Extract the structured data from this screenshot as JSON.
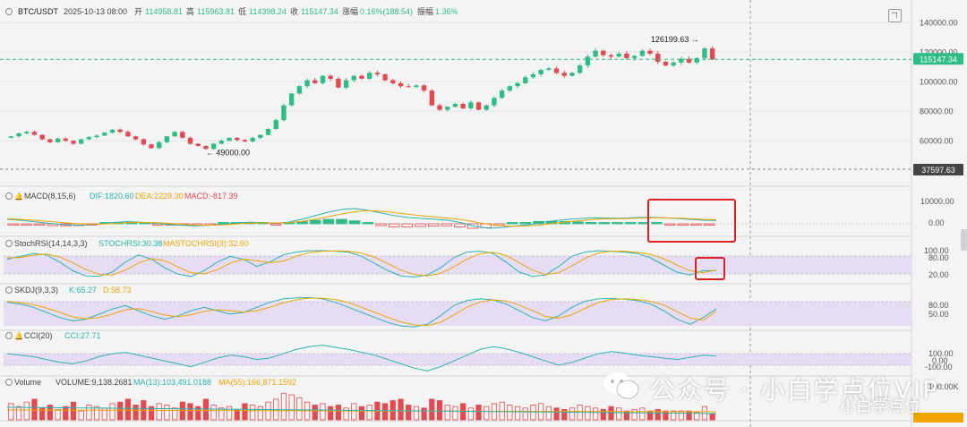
{
  "header": {
    "symbol": "BTC/USDT",
    "datetime": "2025-10-13 08:00",
    "open_label": "开",
    "open": "114958.81",
    "high_label": "高",
    "high": "115963.81",
    "low_label": "低",
    "low": "114398.24",
    "close_label": "收",
    "close": "115147.34",
    "change_label": "涨幅",
    "change": "0.16%(188.54)",
    "amp_label": "振幅",
    "amp": "1.36%"
  },
  "colors": {
    "up": "#2ebd85",
    "down": "#e5484d",
    "orange": "#f0a500",
    "teal": "#2ab3b3",
    "purple_band": "#e6dcf4",
    "red_box": "#e02020"
  },
  "chart_data": [
    {
      "type": "candlestick",
      "name": "BTC/USDT",
      "ylim": [
        45000,
        142000
      ],
      "yticks": [
        60000,
        80000,
        100000,
        120000,
        140000
      ],
      "ytick_labels": [
        "60000.00",
        "80000.00",
        "100000.00",
        "120000.00",
        "140000.00"
      ],
      "price_line": "115147.34",
      "cursor_line": "37597.63",
      "annotations": [
        {
          "text": "126199.63",
          "value": 126199.63
        },
        {
          "text": "49000.00",
          "value": 49000
        }
      ],
      "closes": [
        63000,
        65000,
        66000,
        64000,
        61000,
        59000,
        61500,
        60000,
        58000,
        61000,
        62500,
        63500,
        65500,
        67500,
        66000,
        63000,
        61000,
        57500,
        55000,
        59000,
        63000,
        66000,
        62000,
        58000,
        56500,
        54500,
        58000,
        60000,
        62000,
        60500,
        59500,
        62000,
        64000,
        68000,
        74000,
        84000,
        92000,
        97000,
        101000,
        99000,
        104000,
        102000,
        96000,
        101000,
        104000,
        102000,
        106000,
        105000,
        101000,
        99000,
        97000,
        96500,
        97500,
        94000,
        84000,
        81000,
        83000,
        85000,
        82000,
        86000,
        81000,
        84000,
        89000,
        94000,
        97000,
        99000,
        103000,
        105000,
        108000,
        109000,
        106000,
        104000,
        106000,
        111000,
        117000,
        121000,
        118000,
        117000,
        119000,
        116000,
        117500,
        121000,
        119000,
        113500,
        111000,
        113000,
        115500,
        113000,
        116000,
        122500,
        115147.34
      ],
      "volumes": [
        0.55,
        0.45,
        0.6,
        0.7,
        0.4,
        0.5,
        0.35,
        0.45,
        0.6,
        0.3,
        0.5,
        0.45,
        0.4,
        0.55,
        0.6,
        0.7,
        0.5,
        0.65,
        0.45,
        0.55,
        0.5,
        0.4,
        0.6,
        0.55,
        0.45,
        0.7,
        0.5,
        0.4,
        0.45,
        0.35,
        0.55,
        0.5,
        0.45,
        0.6,
        0.7,
        0.9,
        0.85,
        0.75,
        0.6,
        0.5,
        0.55,
        0.45,
        0.5,
        0.4,
        0.55,
        0.45,
        0.5,
        0.6,
        0.55,
        0.65,
        0.7,
        0.5,
        0.45,
        0.4,
        0.7,
        0.65,
        0.5,
        0.45,
        0.55,
        0.4,
        0.5,
        0.45,
        0.55,
        0.6,
        0.5,
        0.45,
        0.4,
        0.5,
        0.55,
        0.45,
        0.4,
        0.35,
        0.4,
        0.5,
        0.45,
        0.4,
        0.35,
        0.45,
        0.4,
        0.3,
        0.35,
        0.4,
        0.3,
        0.35,
        0.3,
        0.3,
        0.3,
        0.3,
        0.25,
        0.45,
        0.2
      ]
    },
    {
      "type": "line",
      "name": "MACD(8,15,6)",
      "label": "MACD(8,15,6)",
      "values_text": {
        "dif": "DIF:1820.60",
        "dea": "DEA:2229.30",
        "macd": "MACD:-817.39"
      },
      "yticks": [
        "10000.00",
        "0.00"
      ],
      "series": [
        {
          "name": "DIF",
          "values": [
            2500,
            2000,
            1200,
            400,
            -300,
            -800,
            -600,
            0,
            800,
            1200,
            900,
            300,
            -300,
            -800,
            -1200,
            -900,
            -200,
            500,
            900,
            700,
            300,
            900,
            2500,
            4500,
            6500,
            8000,
            8500,
            7500,
            6000,
            4500,
            3500,
            3000,
            2500,
            2000,
            500,
            -1500,
            -2500,
            -2000,
            -1200,
            -500,
            800,
            1800,
            2500,
            3000,
            3300,
            3200,
            3100,
            3500,
            3600,
            3400,
            3000,
            2500,
            2000,
            1820
          ]
        },
        {
          "name": "DEA",
          "values": [
            2800,
            2500,
            2000,
            1400,
            800,
            200,
            -200,
            -200,
            200,
            600,
            800,
            700,
            300,
            -200,
            -600,
            -800,
            -600,
            -200,
            300,
            500,
            500,
            600,
            1300,
            2500,
            4000,
            5500,
            6800,
            7300,
            7000,
            6200,
            5300,
            4500,
            3800,
            3100,
            2300,
            1000,
            -300,
            -1100,
            -1400,
            -1200,
            -500,
            400,
            1200,
            1900,
            2500,
            2800,
            2900,
            3100,
            3300,
            3300,
            3200,
            2900,
            2500,
            2229
          ]
        },
        {
          "name": "MACD",
          "values": [
            -300,
            -500,
            -800,
            -1000,
            -1100,
            -1000,
            -400,
            200,
            600,
            600,
            100,
            -400,
            -600,
            -600,
            -600,
            -100,
            400,
            700,
            600,
            200,
            -200,
            300,
            1200,
            2000,
            2500,
            2500,
            1700,
            200,
            -1000,
            -1700,
            -1800,
            -1500,
            -1300,
            -1100,
            -1800,
            -2500,
            -2200,
            -900,
            200,
            700,
            1300,
            1400,
            1300,
            1100,
            800,
            400,
            200,
            400,
            300,
            100,
            -200,
            -400,
            -500,
            -817
          ]
        }
      ]
    },
    {
      "type": "line",
      "name": "StochRSI(14,14,3,3)",
      "label": "StochRSI(14,14,3,3)",
      "values_text": {
        "k": "STOCHRSI:30.38",
        "d": "MASTOCHRSI(3):32.60"
      },
      "yticks": [
        "100.00",
        "80.00",
        "20.00"
      ],
      "series": [
        {
          "name": "STOCHRSI",
          "values": [
            70,
            80,
            90,
            85,
            60,
            30,
            12,
            10,
            25,
            60,
            85,
            70,
            40,
            18,
            10,
            30,
            60,
            80,
            70,
            45,
            60,
            85,
            95,
            100,
            100,
            98,
            95,
            80,
            55,
            30,
            12,
            8,
            15,
            40,
            75,
            95,
            98,
            90,
            60,
            25,
            10,
            15,
            45,
            80,
            95,
            100,
            98,
            95,
            90,
            75,
            50,
            25,
            15,
            30,
            30.38
          ]
        },
        {
          "name": "MASTOCHRSI(3)",
          "values": [
            75,
            76,
            84,
            88,
            78,
            58,
            34,
            17,
            15,
            32,
            57,
            72,
            65,
            43,
            23,
            19,
            33,
            57,
            70,
            65,
            58,
            63,
            80,
            93,
            98,
            99,
            98,
            91,
            77,
            55,
            32,
            17,
            12,
            21,
            43,
            70,
            89,
            94,
            83,
            58,
            32,
            17,
            23,
            47,
            73,
            92,
            98,
            98,
            94,
            87,
            72,
            50,
            30,
            23,
            32.6
          ]
        }
      ]
    },
    {
      "type": "line",
      "name": "SKDJ(9,3,3)",
      "label": "SKDJ(9,3,3)",
      "values_text": {
        "k": "K:65.27",
        "d": "D:58.73"
      },
      "yticks": [
        "80.00",
        "50.00"
      ],
      "series": [
        {
          "name": "K",
          "values": [
            85,
            80,
            70,
            55,
            40,
            30,
            35,
            50,
            65,
            75,
            60,
            45,
            35,
            45,
            60,
            70,
            60,
            50,
            55,
            70,
            85,
            95,
            98,
            99,
            95,
            85,
            70,
            55,
            40,
            25,
            15,
            12,
            20,
            45,
            75,
            90,
            95,
            92,
            80,
            60,
            40,
            30,
            45,
            70,
            88,
            95,
            96,
            94,
            90,
            80,
            60,
            35,
            20,
            40,
            65.27
          ]
        },
        {
          "name": "D",
          "values": [
            88,
            84,
            78,
            68,
            55,
            42,
            36,
            40,
            50,
            63,
            66,
            58,
            47,
            42,
            48,
            58,
            63,
            60,
            56,
            60,
            70,
            83,
            92,
            97,
            97,
            93,
            84,
            70,
            55,
            40,
            27,
            18,
            16,
            26,
            47,
            70,
            86,
            92,
            89,
            77,
            60,
            43,
            38,
            48,
            67,
            84,
            93,
            95,
            93,
            88,
            77,
            58,
            38,
            32,
            58.73
          ]
        }
      ]
    },
    {
      "type": "line",
      "name": "CCI(20)",
      "label": "CCI(20)",
      "values_text": {
        "cci": "CCI:27.71"
      },
      "yticks": [
        "100.00",
        "0.00",
        "-100.00"
      ],
      "series": [
        {
          "name": "CCI",
          "values": [
            60,
            40,
            20,
            -20,
            -60,
            -80,
            -40,
            20,
            60,
            80,
            40,
            0,
            -40,
            -80,
            -120,
            -60,
            0,
            40,
            20,
            -20,
            0,
            60,
            120,
            160,
            180,
            150,
            120,
            80,
            40,
            -20,
            -80,
            -140,
            -180,
            -120,
            -40,
            40,
            120,
            160,
            130,
            80,
            20,
            -40,
            -100,
            -60,
            0,
            60,
            90,
            70,
            40,
            20,
            0,
            -20,
            10,
            40,
            27.71
          ]
        }
      ]
    },
    {
      "type": "bar",
      "name": "Volume",
      "label": "Volume",
      "values_text": {
        "vol": "VOLUME:9,138.2681",
        "ma13": "MA(13):103,491.0188",
        "ma55": "MA(55):166,871.1592"
      },
      "yticks": [
        "100.00K"
      ]
    }
  ],
  "watermark": {
    "line1": "公众号 · 小白学点位VIP",
    "line2": "小白学点位"
  }
}
